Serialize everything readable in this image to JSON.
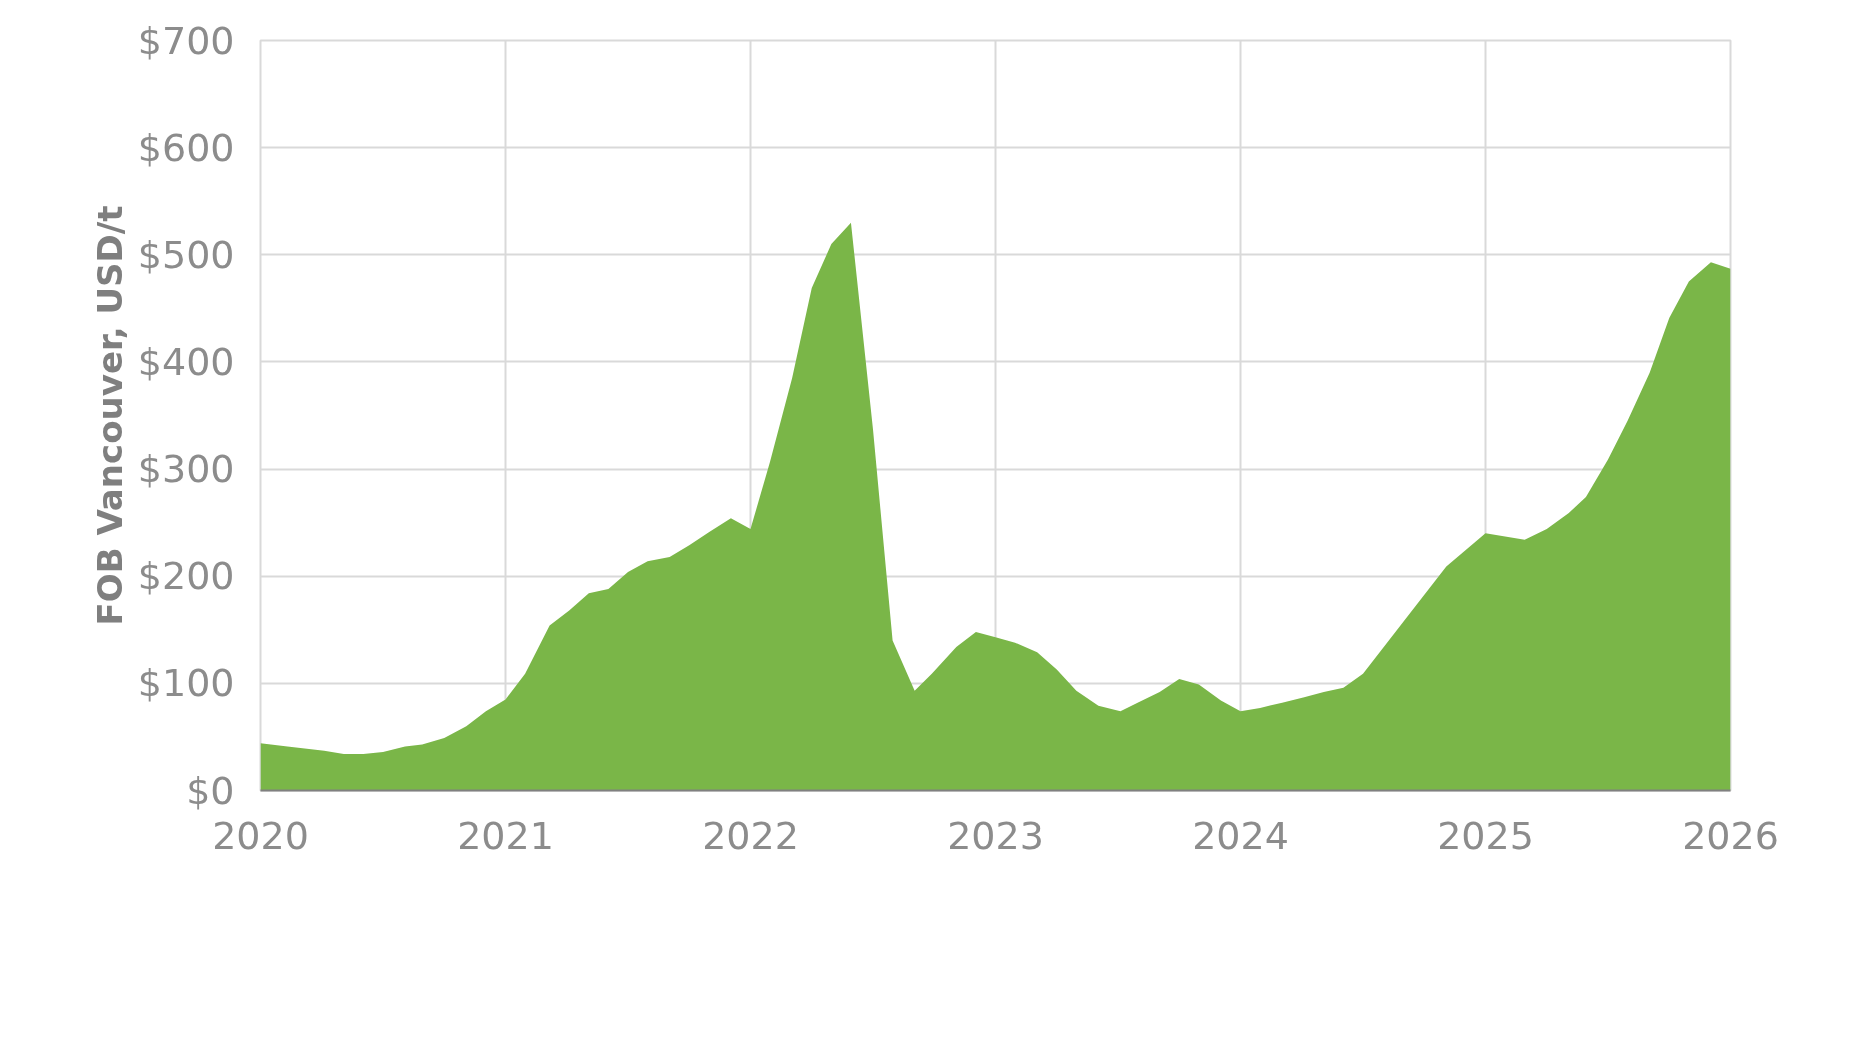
{
  "chart_data": {
    "type": "area",
    "ylabel": "FOB Vancouver, USD/t",
    "color": "#7ab648",
    "grid": true,
    "xlim": [
      2020,
      2026
    ],
    "ylim": [
      0,
      700
    ],
    "xticks": [
      2020,
      2021,
      2022,
      2023,
      2024,
      2025,
      2026
    ],
    "yticks": [
      {
        "value": 0,
        "label": "$0"
      },
      {
        "value": 100,
        "label": "$100"
      },
      {
        "value": 200,
        "label": "$200"
      },
      {
        "value": 300,
        "label": "$300"
      },
      {
        "value": 400,
        "label": "$400"
      },
      {
        "value": 500,
        "label": "$500"
      },
      {
        "value": 600,
        "label": "$600"
      },
      {
        "value": 700,
        "label": "$700"
      }
    ],
    "x": [
      2020.0,
      2020.11,
      2020.26,
      2020.34,
      2020.42,
      2020.5,
      2020.59,
      2020.66,
      2020.75,
      2020.84,
      2020.92,
      2021.0,
      2021.08,
      2021.18,
      2021.26,
      2021.34,
      2021.42,
      2021.5,
      2021.58,
      2021.67,
      2021.75,
      2021.83,
      2021.92,
      2022.0,
      2022.08,
      2022.17,
      2022.25,
      2022.33,
      2022.41,
      2022.5,
      2022.58,
      2022.67,
      2022.74,
      2022.84,
      2022.92,
      2023.0,
      2023.08,
      2023.17,
      2023.25,
      2023.33,
      2023.42,
      2023.51,
      2023.58,
      2023.67,
      2023.75,
      2023.83,
      2023.92,
      2024.0,
      2024.08,
      2024.17,
      2024.26,
      2024.34,
      2024.42,
      2024.5,
      2024.66,
      2024.84,
      2025.0,
      2025.08,
      2025.16,
      2025.25,
      2025.34,
      2025.41,
      2025.5,
      2025.58,
      2025.67,
      2025.75,
      2025.83,
      2025.92,
      2026.0
    ],
    "values": [
      44,
      41,
      37,
      34,
      34,
      36,
      41,
      43,
      49,
      60,
      74,
      85,
      109,
      154,
      168,
      184,
      188,
      204,
      214,
      218,
      229,
      241,
      254,
      244,
      307,
      385,
      469,
      510,
      530,
      337,
      140,
      93,
      109,
      134,
      148,
      143,
      138,
      129,
      113,
      93,
      79,
      74,
      82,
      92,
      104,
      99,
      84,
      74,
      77,
      82,
      87,
      92,
      96,
      109,
      156,
      209,
      240,
      237,
      234,
      244,
      259,
      274,
      309,
      345,
      390,
      441,
      475,
      493,
      487
    ]
  }
}
